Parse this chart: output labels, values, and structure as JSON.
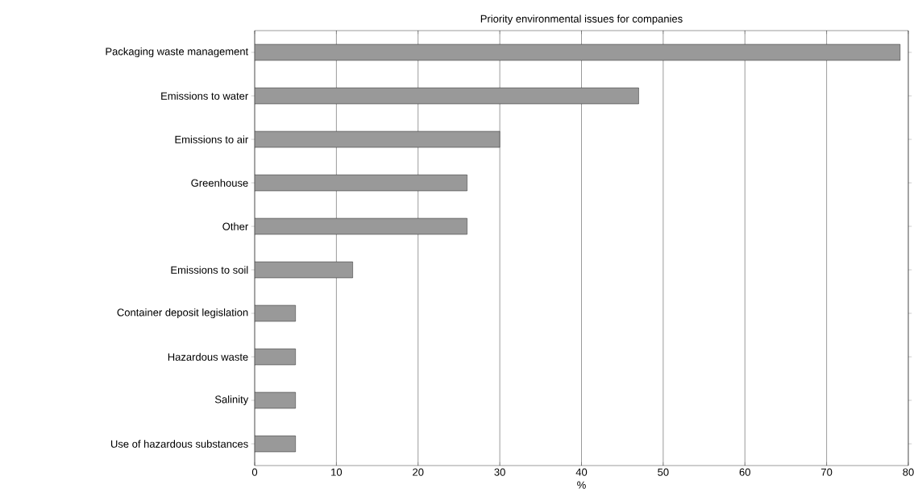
{
  "chart_data": {
    "type": "bar",
    "orientation": "horizontal",
    "title": "Priority environmental issues for companies",
    "xlabel": "%",
    "categories": [
      "Packaging waste management",
      "Emissions to water",
      "Emissions to air",
      "Greenhouse",
      "Other",
      "Emissions to soil",
      "Container deposit legislation",
      "Hazardous waste",
      "Salinity",
      "Use of hazardous substances"
    ],
    "values": [
      79,
      47,
      30,
      26,
      26,
      12,
      5,
      5,
      5,
      5
    ],
    "color": "#999999",
    "xlim": [
      0,
      80
    ],
    "xticks": [
      0,
      10,
      20,
      30,
      40,
      50,
      60,
      70,
      80
    ],
    "grid": "x"
  }
}
